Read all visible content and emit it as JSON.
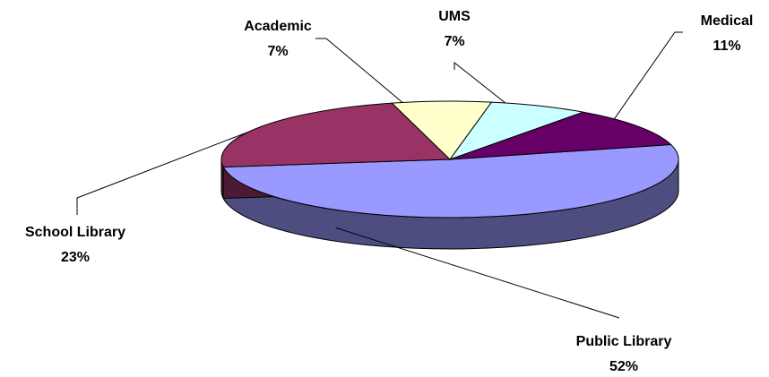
{
  "chart_data": {
    "type": "pie",
    "style": "3d",
    "title": "",
    "legend": "none",
    "slices": [
      {
        "label": "Public Library",
        "percent_text": "52%",
        "value": 52,
        "color": "#9999FF",
        "side_color": "#4D4D80"
      },
      {
        "label": "School Library",
        "percent_text": "23%",
        "value": 23,
        "color": "#993366",
        "side_color": "#4D1A33"
      },
      {
        "label": "Academic",
        "percent_text": "7%",
        "value": 7,
        "color": "#FFFFCC",
        "side_color": "#80806A"
      },
      {
        "label": "UMS",
        "percent_text": "7%",
        "value": 7,
        "color": "#CCFFFF",
        "side_color": "#668080"
      },
      {
        "label": "Medical",
        "percent_text": "11%",
        "value": 11,
        "color": "#660066",
        "side_color": "#330033"
      }
    ]
  }
}
